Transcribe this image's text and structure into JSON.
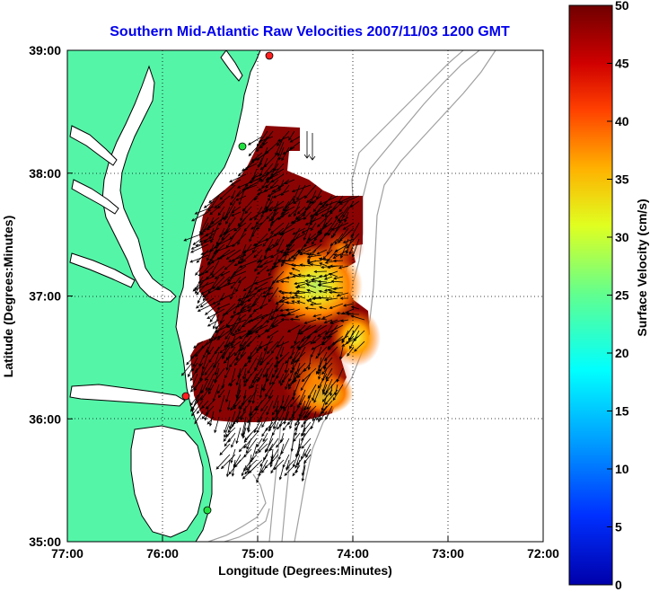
{
  "title": "Southern Mid-Atlantic Raw Velocities 2007/11/03 1200 GMT",
  "xlabel": "Longitude (Degrees:Minutes)",
  "ylabel": "Latitude (Degrees:Minutes)",
  "x_ticks": [
    "77:00",
    "76:00",
    "75:00",
    "74:00",
    "73:00",
    "72:00"
  ],
  "y_ticks": [
    "39:00",
    "38:00",
    "37:00",
    "36:00",
    "35:00"
  ],
  "colorbar": {
    "label": "Surface Velocity (cm/s)",
    "ticks": [
      "50",
      "45",
      "40",
      "35",
      "30",
      "25",
      "20",
      "15",
      "10",
      "5",
      "0"
    ],
    "range": [
      0,
      50
    ],
    "colormap": "jet"
  },
  "colors": {
    "title": "#0000ee",
    "land": "#55f5a8",
    "coast_line": "#000000",
    "bathymetry": "#a0a0a0",
    "site_red": "#ff2020",
    "site_green": "#20e040"
  },
  "map": {
    "lon_range": [
      "77:00",
      "72:00"
    ],
    "lat_range": [
      "35:00",
      "39:00"
    ],
    "grid": true
  }
}
